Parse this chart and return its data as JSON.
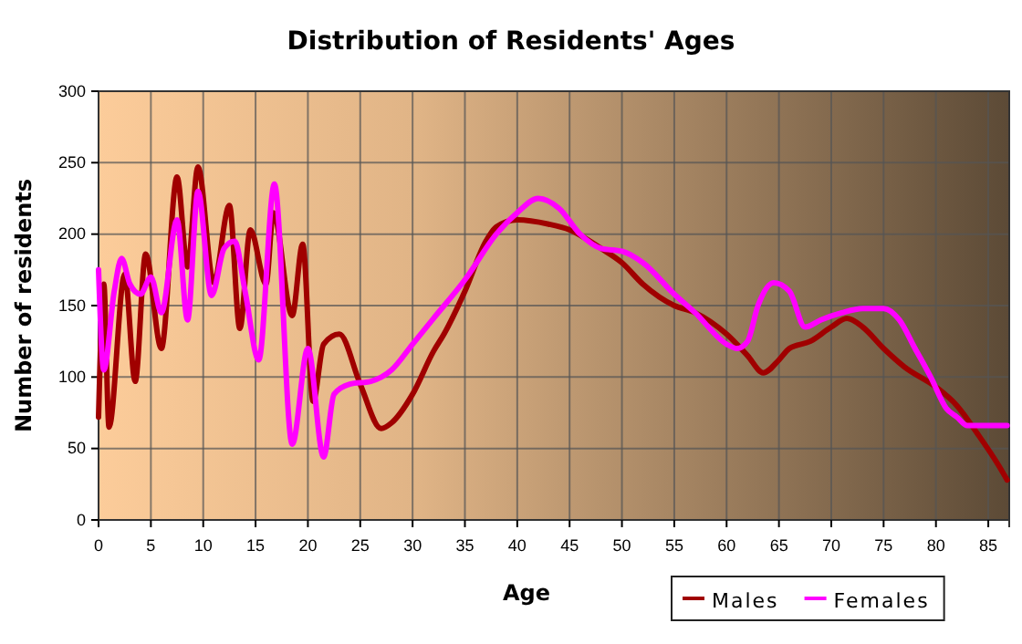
{
  "chart_data": {
    "type": "line",
    "title": "Distribution of Residents' Ages",
    "xlabel": "Age",
    "ylabel": "Number of residents",
    "xlim": [
      0,
      87
    ],
    "xticks": [
      0,
      5,
      10,
      15,
      20,
      25,
      30,
      35,
      40,
      45,
      50,
      55,
      60,
      65,
      70,
      75,
      80,
      85
    ],
    "ylim": [
      0,
      300
    ],
    "yticks": [
      0,
      50,
      100,
      150,
      200,
      250,
      300
    ],
    "grid": true,
    "legend": "bottom right",
    "series": [
      {
        "name": "Males",
        "color": "#a00000",
        "x": [
          0,
          0.5,
          1,
          2.5,
          3.5,
          4.5,
          6,
          7.5,
          8.5,
          9.5,
          11,
          12.5,
          13.5,
          14.5,
          16,
          16.7,
          18.5,
          19.5,
          20.5,
          21.5,
          23,
          25,
          27,
          28,
          30,
          32,
          33,
          35,
          37,
          38,
          40,
          43,
          45,
          48,
          50,
          52,
          55,
          57,
          60,
          62,
          63.5,
          65,
          66,
          68,
          70,
          71.5,
          73,
          75,
          77,
          80,
          82,
          84,
          86,
          86.8
        ],
        "values": [
          72,
          165,
          65,
          172,
          97,
          186,
          120,
          240,
          177,
          247,
          166,
          220,
          134,
          203,
          165,
          215,
          143,
          193,
          83,
          123,
          130,
          95,
          64,
          68,
          88,
          118,
          130,
          160,
          195,
          205,
          210,
          207,
          203,
          190,
          180,
          165,
          150,
          145,
          130,
          115,
          103,
          112,
          120,
          125,
          135,
          141,
          135,
          120,
          107,
          93,
          80,
          60,
          38,
          28
        ]
      },
      {
        "name": "Females",
        "color": "#ff00ff",
        "x": [
          0,
          0.5,
          1.5,
          2.2,
          3,
          4,
          5,
          6,
          7.5,
          8.5,
          9.5,
          10.8,
          12,
          13,
          14,
          15.3,
          16.8,
          18.5,
          20,
          21.5,
          22.5,
          24,
          26,
          28,
          30,
          32,
          35,
          38,
          40,
          42,
          44,
          46,
          48,
          50,
          52,
          55,
          57,
          60,
          61,
          62,
          63,
          64.5,
          66,
          67.5,
          69,
          71,
          73,
          75,
          76.5,
          78,
          79.5,
          81,
          82,
          83,
          86.8
        ],
        "values": [
          175,
          105,
          160,
          183,
          165,
          158,
          170,
          145,
          210,
          140,
          230,
          157,
          190,
          195,
          160,
          112,
          235,
          53,
          120,
          44,
          88,
          95,
          97,
          105,
          123,
          141,
          168,
          200,
          215,
          225,
          218,
          200,
          190,
          188,
          180,
          158,
          145,
          123,
          120,
          125,
          150,
          166,
          160,
          135,
          140,
          145,
          148,
          148,
          140,
          120,
          100,
          78,
          72,
          66,
          66
        ]
      }
    ]
  }
}
